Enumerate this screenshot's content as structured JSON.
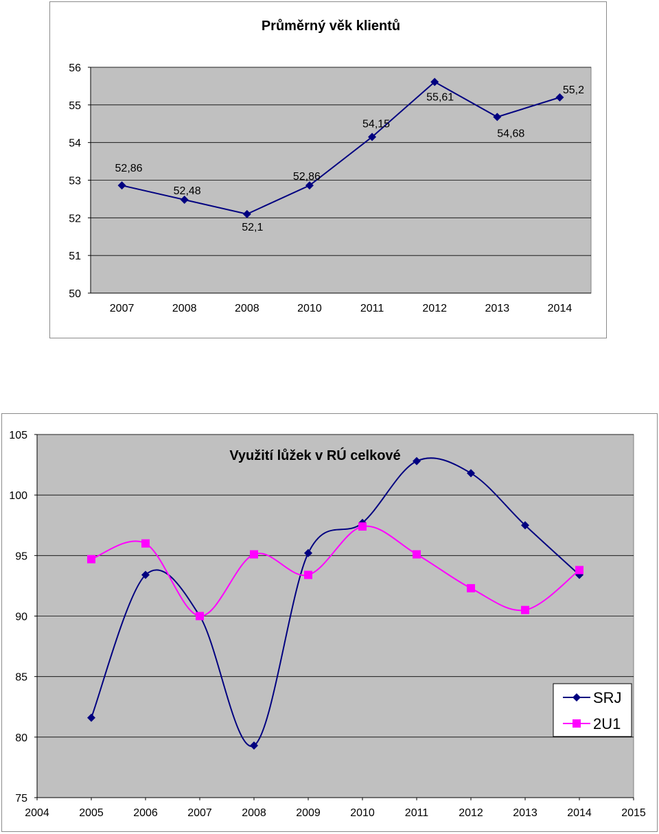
{
  "chart_data": [
    {
      "type": "line",
      "title": "Průměrný věk klientů",
      "categories": [
        "2007",
        "2008",
        "2008",
        "2010",
        "2011",
        "2012",
        "2013",
        "2014"
      ],
      "series": [
        {
          "values": [
            52.86,
            52.48,
            52.1,
            52.86,
            54.15,
            55.61,
            54.68,
            55.2
          ],
          "data_labels": [
            "52,86",
            "52,48",
            "52,1",
            "52,86",
            "54,15",
            "55,61",
            "54,68",
            "55,2"
          ],
          "color": "#000080",
          "marker": "diamond"
        }
      ],
      "ylim": [
        50,
        56
      ],
      "yticks": [
        "50",
        "51",
        "52",
        "53",
        "54",
        "55",
        "56"
      ],
      "plot_background": "#c0c0c0",
      "grid": true,
      "legend": "none"
    },
    {
      "type": "line",
      "title": "Využití lůžek v RÚ celkové",
      "x_ticks": [
        "2004",
        "2005",
        "2006",
        "2007",
        "2008",
        "2009",
        "2010",
        "2011",
        "2012",
        "2013",
        "2014",
        "2015"
      ],
      "series": [
        {
          "name": "SRJ",
          "color": "#000080",
          "marker": "diamond",
          "smooth": true,
          "values": [
            81.6,
            93.4,
            90.0,
            79.3,
            95.2,
            97.7,
            102.8,
            101.8,
            97.5,
            93.4
          ]
        },
        {
          "name": "2U1",
          "color": "#ff00ff",
          "marker": "square",
          "smooth": true,
          "values": [
            94.7,
            96.0,
            90.0,
            95.1,
            93.4,
            97.4,
            95.1,
            92.3,
            90.5,
            93.8
          ]
        }
      ],
      "ylim": [
        75,
        105
      ],
      "yticks": [
        "75",
        "80",
        "85",
        "90",
        "95",
        "100",
        "105"
      ],
      "plot_background": "#c0c0c0",
      "grid": true,
      "legend": "bottom-right"
    }
  ]
}
